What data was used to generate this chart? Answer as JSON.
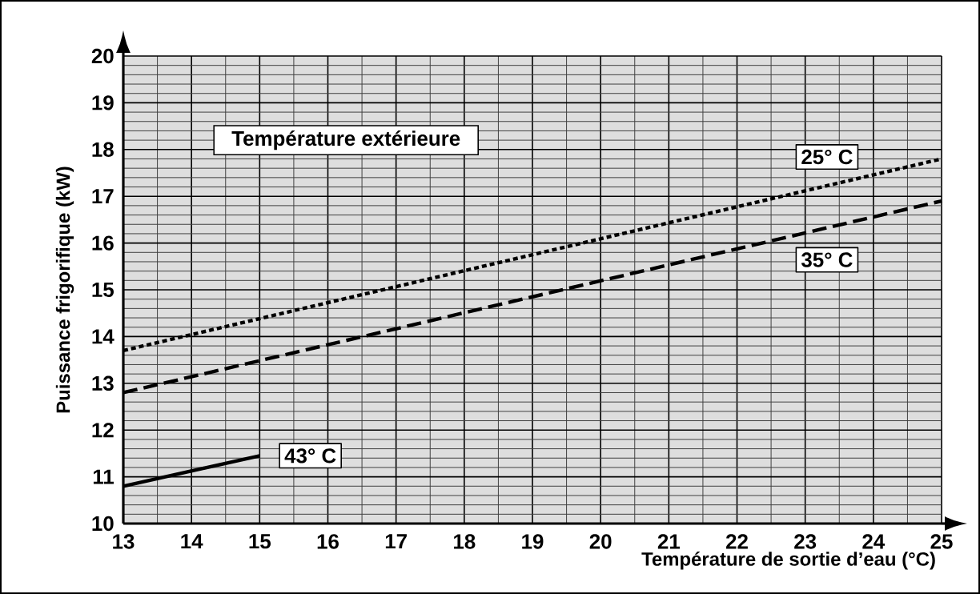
{
  "chart_data": {
    "type": "line",
    "legend_title": "Température extérieure",
    "xlabel": "Température de sortie d’eau  (°C)",
    "ylabel": "Puissance frigorifique (kW)",
    "xlim": [
      13,
      25
    ],
    "ylim": [
      10,
      20
    ],
    "xticks": [
      13,
      14,
      15,
      16,
      17,
      18,
      19,
      20,
      21,
      22,
      23,
      24,
      25
    ],
    "yticks": [
      10,
      11,
      12,
      13,
      14,
      15,
      16,
      17,
      18,
      19,
      20
    ],
    "grid": true,
    "series": [
      {
        "name": "25° C",
        "color": "#000000",
        "line_style": "dotted",
        "x": [
          13,
          25
        ],
        "values": [
          13.7,
          17.8
        ]
      },
      {
        "name": "35° C",
        "color": "#000000",
        "line_style": "dashed",
        "x": [
          13,
          25
        ],
        "values": [
          12.8,
          16.9
        ]
      },
      {
        "name": "43° C",
        "color": "#000000",
        "line_style": "solid",
        "x": [
          13,
          15
        ],
        "values": [
          10.8,
          11.45
        ]
      }
    ]
  }
}
